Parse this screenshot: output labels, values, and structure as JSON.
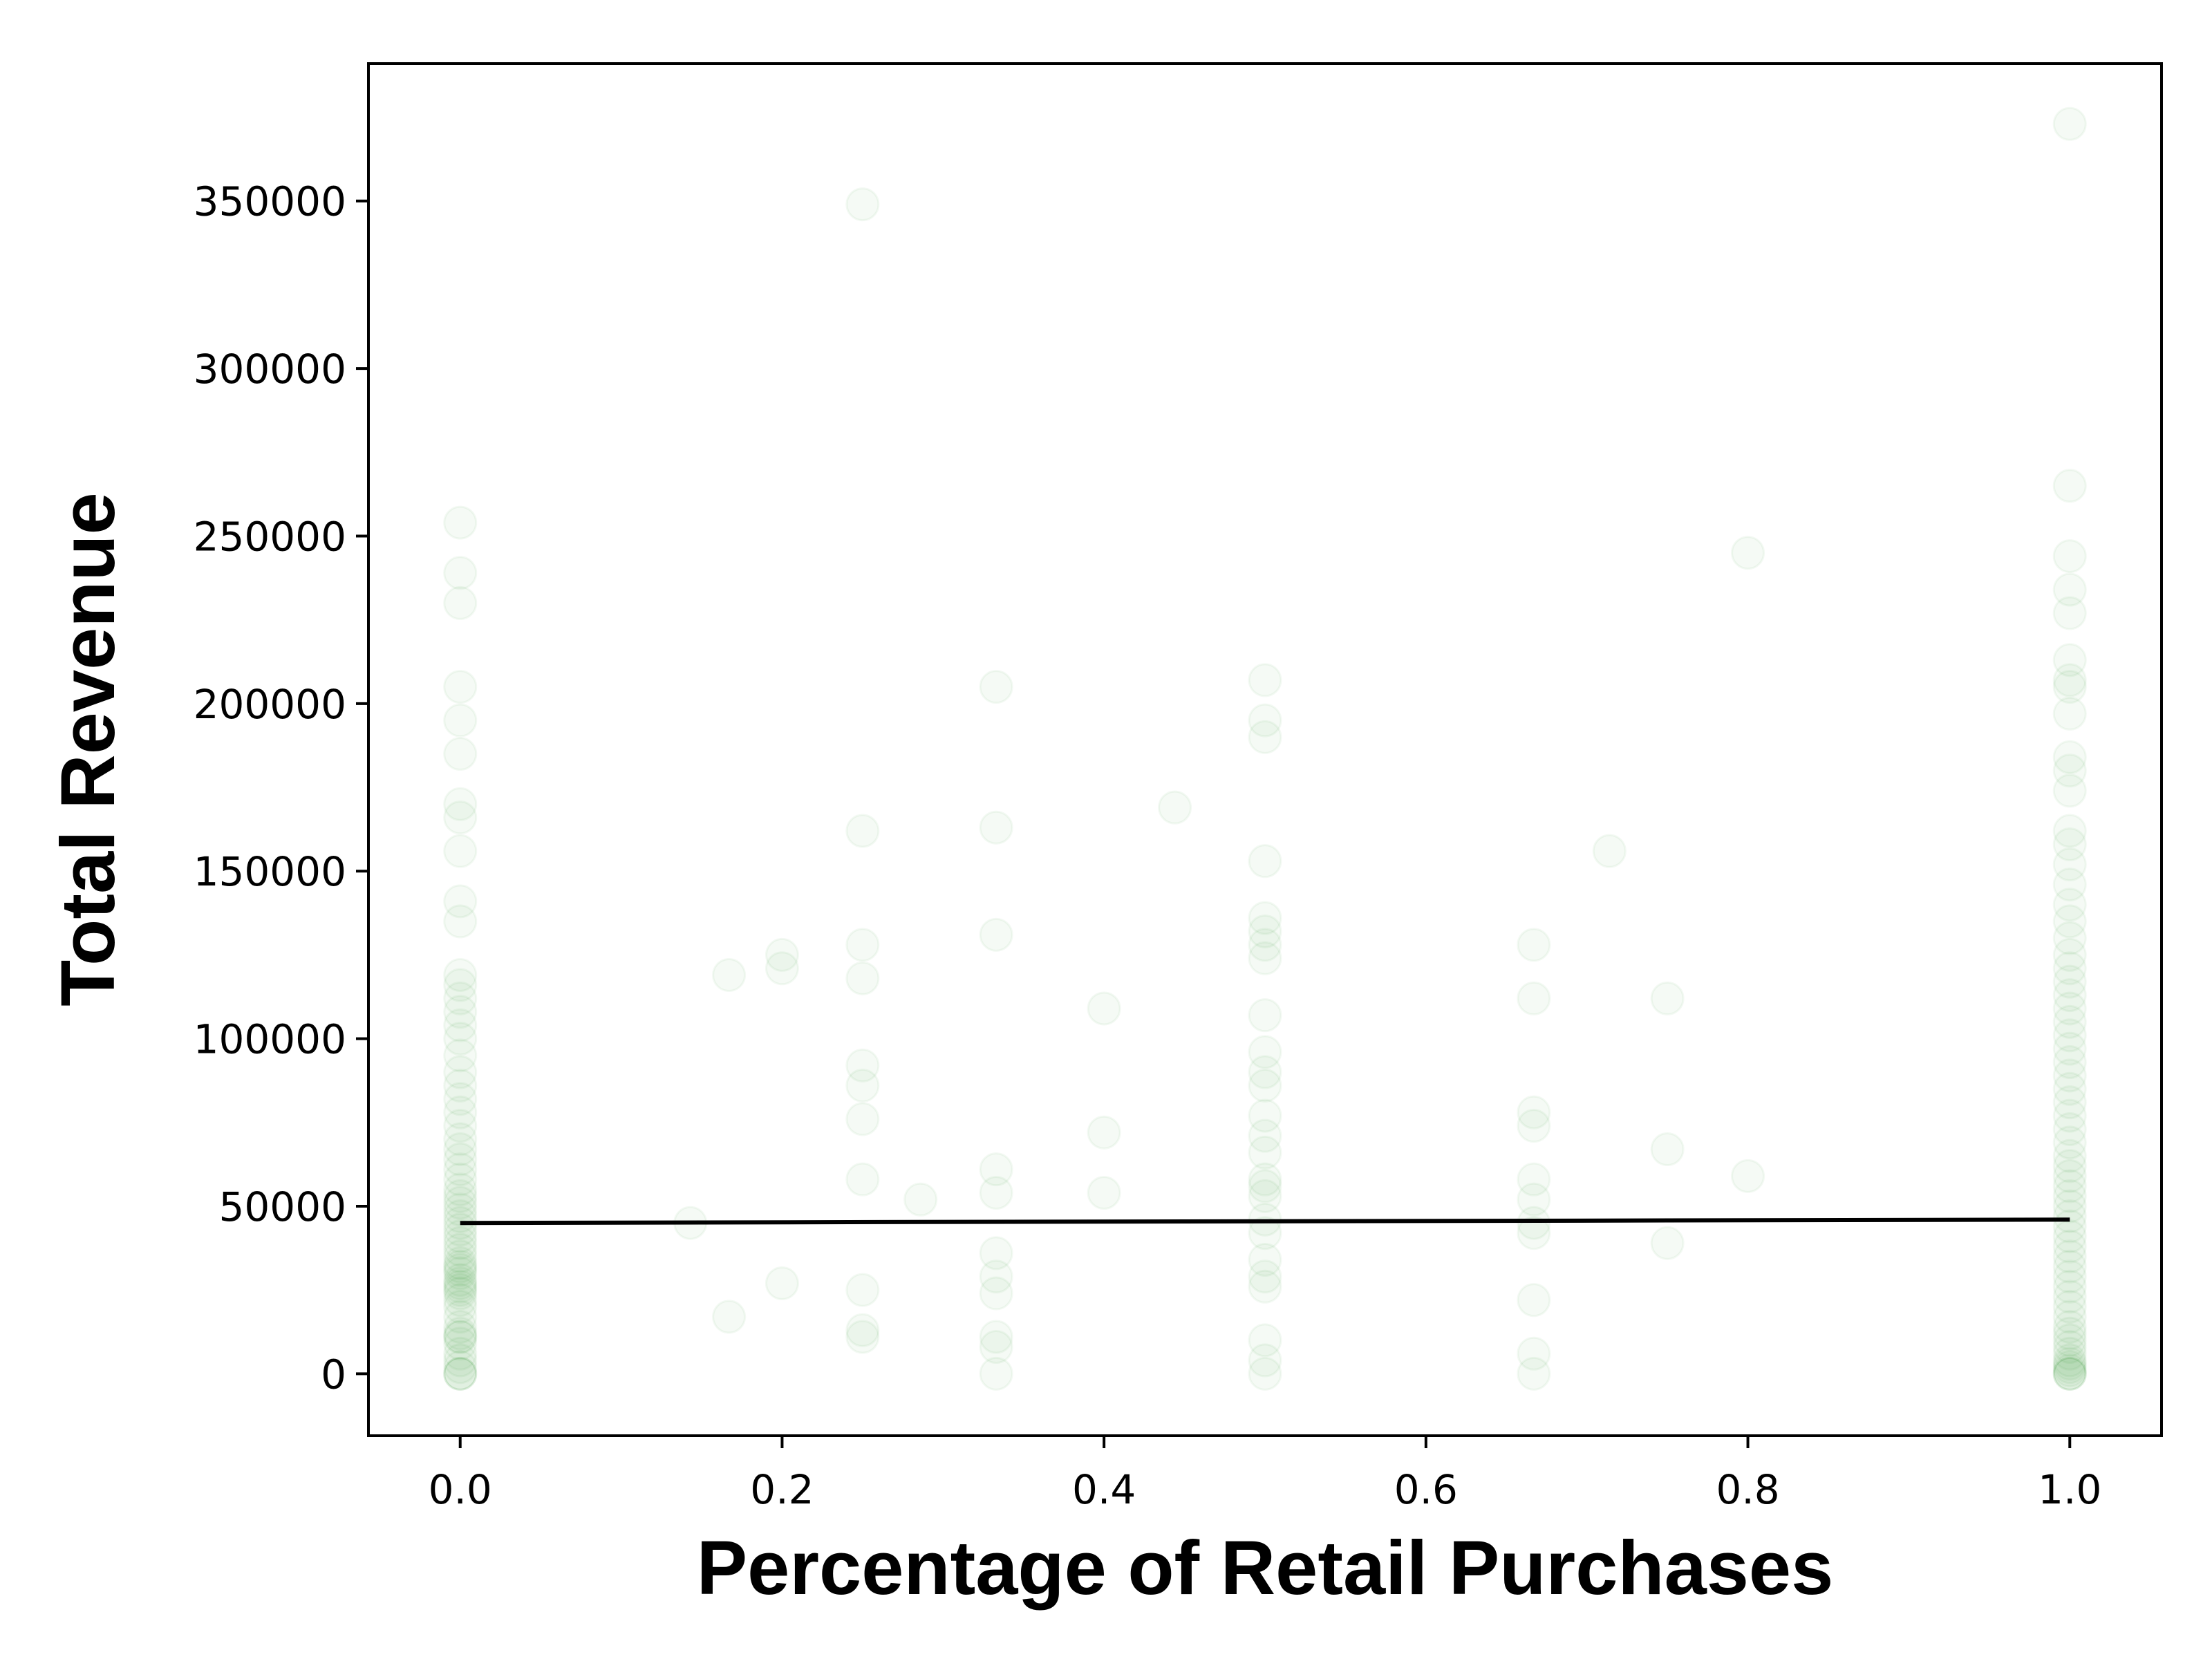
{
  "chart_data": {
    "type": "scatter",
    "title": "",
    "xlabel": "Percentage of Retail Purchases",
    "ylabel": "Total Revenue",
    "xlim": [
      -0.057,
      1.057
    ],
    "ylim": [
      -18500,
      391000
    ],
    "x_ticks": [
      0.0,
      0.2,
      0.4,
      0.6,
      0.8,
      1.0
    ],
    "x_tick_labels": [
      "0.0",
      "0.2",
      "0.4",
      "0.6",
      "0.8",
      "1.0"
    ],
    "y_ticks": [
      0,
      50000,
      100000,
      150000,
      200000,
      250000,
      300000,
      350000
    ],
    "y_tick_labels": [
      "0",
      "50000",
      "100000",
      "150000",
      "200000",
      "250000",
      "300000",
      "350000"
    ],
    "grid": false,
    "legend": "none",
    "point_color": "#008000",
    "point_alpha": 0.04,
    "line_color": "#000000",
    "series": [
      {
        "kind": "points",
        "points": [
          [
            0.0,
            0
          ],
          [
            0.0,
            0
          ],
          [
            0.0,
            0
          ],
          [
            0.0,
            2000
          ],
          [
            0.0,
            4000
          ],
          [
            0.0,
            6000
          ],
          [
            0.0,
            9000
          ],
          [
            0.0,
            11000
          ],
          [
            0.0,
            11000
          ],
          [
            0.0,
            12000
          ],
          [
            0.0,
            14000
          ],
          [
            0.0,
            17000
          ],
          [
            0.0,
            20000
          ],
          [
            0.0,
            22000
          ],
          [
            0.0,
            24000
          ],
          [
            0.0,
            25000
          ],
          [
            0.0,
            26000
          ],
          [
            0.0,
            27000
          ],
          [
            0.0,
            28000
          ],
          [
            0.0,
            30000
          ],
          [
            0.0,
            31000
          ],
          [
            0.0,
            32000
          ],
          [
            0.0,
            33000
          ],
          [
            0.0,
            35000
          ],
          [
            0.0,
            37000
          ],
          [
            0.0,
            39000
          ],
          [
            0.0,
            41000
          ],
          [
            0.0,
            43000
          ],
          [
            0.0,
            45000
          ],
          [
            0.0,
            47000
          ],
          [
            0.0,
            49000
          ],
          [
            0.0,
            51000
          ],
          [
            0.0,
            53000
          ],
          [
            0.0,
            55000
          ],
          [
            0.0,
            58000
          ],
          [
            0.0,
            61000
          ],
          [
            0.0,
            64000
          ],
          [
            0.0,
            67000
          ],
          [
            0.0,
            70000
          ],
          [
            0.0,
            74000
          ],
          [
            0.0,
            78000
          ],
          [
            0.0,
            82000
          ],
          [
            0.0,
            86000
          ],
          [
            0.0,
            90000
          ],
          [
            0.0,
            95000
          ],
          [
            0.0,
            100000
          ],
          [
            0.0,
            104000
          ],
          [
            0.0,
            108000
          ],
          [
            0.0,
            112000
          ],
          [
            0.0,
            116000
          ],
          [
            0.0,
            119000
          ],
          [
            0.0,
            135000
          ],
          [
            0.0,
            141000
          ],
          [
            0.0,
            156000
          ],
          [
            0.0,
            166000
          ],
          [
            0.0,
            170000
          ],
          [
            0.0,
            185000
          ],
          [
            0.0,
            195000
          ],
          [
            0.0,
            205000
          ],
          [
            0.0,
            230000
          ],
          [
            0.0,
            239000
          ],
          [
            0.0,
            254000
          ],
          [
            0.143,
            45000
          ],
          [
            0.167,
            17000
          ],
          [
            0.167,
            119000
          ],
          [
            0.2,
            27000
          ],
          [
            0.2,
            121000
          ],
          [
            0.2,
            125000
          ],
          [
            0.25,
            11000
          ],
          [
            0.25,
            13000
          ],
          [
            0.25,
            25000
          ],
          [
            0.25,
            58000
          ],
          [
            0.25,
            76000
          ],
          [
            0.25,
            86000
          ],
          [
            0.25,
            92000
          ],
          [
            0.25,
            118000
          ],
          [
            0.25,
            128000
          ],
          [
            0.25,
            162000
          ],
          [
            0.25,
            349000
          ],
          [
            0.286,
            52000
          ],
          [
            0.333,
            0
          ],
          [
            0.333,
            8000
          ],
          [
            0.333,
            11000
          ],
          [
            0.333,
            24000
          ],
          [
            0.333,
            29000
          ],
          [
            0.333,
            36000
          ],
          [
            0.333,
            54000
          ],
          [
            0.333,
            61000
          ],
          [
            0.333,
            131000
          ],
          [
            0.333,
            163000
          ],
          [
            0.333,
            205000
          ],
          [
            0.4,
            54000
          ],
          [
            0.4,
            72000
          ],
          [
            0.4,
            109000
          ],
          [
            0.444,
            169000
          ],
          [
            0.5,
            0
          ],
          [
            0.5,
            4000
          ],
          [
            0.5,
            10000
          ],
          [
            0.5,
            26000
          ],
          [
            0.5,
            29000
          ],
          [
            0.5,
            34000
          ],
          [
            0.5,
            42000
          ],
          [
            0.5,
            46000
          ],
          [
            0.5,
            53000
          ],
          [
            0.5,
            56000
          ],
          [
            0.5,
            58000
          ],
          [
            0.5,
            66000
          ],
          [
            0.5,
            71000
          ],
          [
            0.5,
            77000
          ],
          [
            0.5,
            86000
          ],
          [
            0.5,
            90000
          ],
          [
            0.5,
            96000
          ],
          [
            0.5,
            107000
          ],
          [
            0.5,
            124000
          ],
          [
            0.5,
            128000
          ],
          [
            0.5,
            132000
          ],
          [
            0.5,
            136000
          ],
          [
            0.5,
            153000
          ],
          [
            0.5,
            190000
          ],
          [
            0.5,
            195000
          ],
          [
            0.5,
            207000
          ],
          [
            0.667,
            0
          ],
          [
            0.667,
            6000
          ],
          [
            0.667,
            22000
          ],
          [
            0.667,
            42000
          ],
          [
            0.667,
            45000
          ],
          [
            0.667,
            52000
          ],
          [
            0.667,
            58000
          ],
          [
            0.667,
            74000
          ],
          [
            0.667,
            78000
          ],
          [
            0.667,
            112000
          ],
          [
            0.667,
            128000
          ],
          [
            0.714,
            156000
          ],
          [
            0.75,
            39000
          ],
          [
            0.75,
            67000
          ],
          [
            0.75,
            112000
          ],
          [
            0.8,
            59000
          ],
          [
            0.8,
            245000
          ],
          [
            1.0,
            0
          ],
          [
            1.0,
            0
          ],
          [
            1.0,
            0
          ],
          [
            1.0,
            1000
          ],
          [
            1.0,
            2000
          ],
          [
            1.0,
            3000
          ],
          [
            1.0,
            4000
          ],
          [
            1.0,
            6000
          ],
          [
            1.0,
            8000
          ],
          [
            1.0,
            10000
          ],
          [
            1.0,
            12000
          ],
          [
            1.0,
            14000
          ],
          [
            1.0,
            17000
          ],
          [
            1.0,
            20000
          ],
          [
            1.0,
            23000
          ],
          [
            1.0,
            26000
          ],
          [
            1.0,
            29000
          ],
          [
            1.0,
            32000
          ],
          [
            1.0,
            35000
          ],
          [
            1.0,
            38000
          ],
          [
            1.0,
            41000
          ],
          [
            1.0,
            44000
          ],
          [
            1.0,
            47000
          ],
          [
            1.0,
            50000
          ],
          [
            1.0,
            53000
          ],
          [
            1.0,
            56000
          ],
          [
            1.0,
            59000
          ],
          [
            1.0,
            62000
          ],
          [
            1.0,
            65000
          ],
          [
            1.0,
            69000
          ],
          [
            1.0,
            73000
          ],
          [
            1.0,
            77000
          ],
          [
            1.0,
            81000
          ],
          [
            1.0,
            85000
          ],
          [
            1.0,
            89000
          ],
          [
            1.0,
            93000
          ],
          [
            1.0,
            97000
          ],
          [
            1.0,
            101000
          ],
          [
            1.0,
            105000
          ],
          [
            1.0,
            109000
          ],
          [
            1.0,
            113000
          ],
          [
            1.0,
            117000
          ],
          [
            1.0,
            121000
          ],
          [
            1.0,
            125000
          ],
          [
            1.0,
            130000
          ],
          [
            1.0,
            135000
          ],
          [
            1.0,
            140000
          ],
          [
            1.0,
            146000
          ],
          [
            1.0,
            152000
          ],
          [
            1.0,
            158000
          ],
          [
            1.0,
            162000
          ],
          [
            1.0,
            174000
          ],
          [
            1.0,
            180000
          ],
          [
            1.0,
            184000
          ],
          [
            1.0,
            197000
          ],
          [
            1.0,
            205000
          ],
          [
            1.0,
            207000
          ],
          [
            1.0,
            213000
          ],
          [
            1.0,
            227000
          ],
          [
            1.0,
            234000
          ],
          [
            1.0,
            244000
          ],
          [
            1.0,
            265000
          ],
          [
            1.0,
            373000
          ]
        ]
      },
      {
        "kind": "line",
        "points": [
          [
            0.0,
            45000
          ],
          [
            1.0,
            46000
          ]
        ]
      }
    ]
  }
}
